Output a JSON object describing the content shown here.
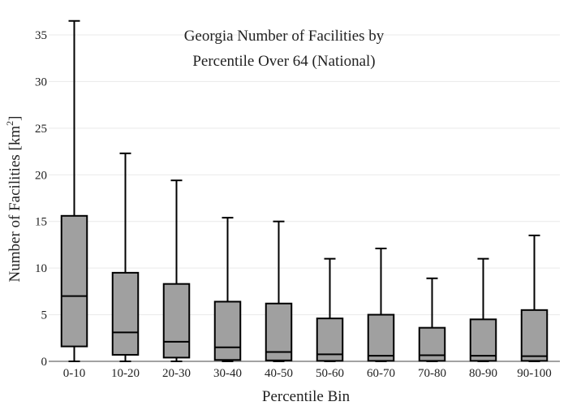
{
  "chart_data": {
    "type": "box",
    "title_line1": "Georgia Number of Facilities by",
    "title_line2": "Percentile Over 64 (National)",
    "xlabel": "Percentile Bin",
    "ylabel_main": "Number of Facilities  [km",
    "ylabel_sup": "2",
    "ylabel_end": "]",
    "ylim": [
      0,
      37
    ],
    "yticks": [
      0,
      5,
      10,
      15,
      20,
      25,
      30,
      35
    ],
    "grid": true,
    "colors": {
      "box_fill": "#a0a0a0",
      "stroke": "#000000",
      "grid": "#e9e9e9"
    },
    "categories": [
      "0-10",
      "10-20",
      "20-30",
      "30-40",
      "40-50",
      "50-60",
      "60-70",
      "70-80",
      "80-90",
      "90-100"
    ],
    "boxes": [
      {
        "min": 0,
        "q1": 1.6,
        "median": 7.0,
        "q3": 15.6,
        "max": 36.5
      },
      {
        "min": 0,
        "q1": 0.7,
        "median": 3.1,
        "q3": 9.5,
        "max": 22.3
      },
      {
        "min": 0,
        "q1": 0.4,
        "median": 2.1,
        "q3": 8.3,
        "max": 19.4
      },
      {
        "min": 0,
        "q1": 0.15,
        "median": 1.5,
        "q3": 6.4,
        "max": 15.4
      },
      {
        "min": 0,
        "q1": 0.1,
        "median": 1.0,
        "q3": 6.2,
        "max": 15.0
      },
      {
        "min": 0,
        "q1": 0.05,
        "median": 0.75,
        "q3": 4.6,
        "max": 11.0
      },
      {
        "min": 0,
        "q1": 0.05,
        "median": 0.6,
        "q3": 5.0,
        "max": 12.1
      },
      {
        "min": 0,
        "q1": 0.05,
        "median": 0.65,
        "q3": 3.6,
        "max": 8.9
      },
      {
        "min": 0,
        "q1": 0.05,
        "median": 0.6,
        "q3": 4.5,
        "max": 11.0
      },
      {
        "min": 0,
        "q1": 0.05,
        "median": 0.55,
        "q3": 5.5,
        "max": 13.5
      }
    ]
  }
}
